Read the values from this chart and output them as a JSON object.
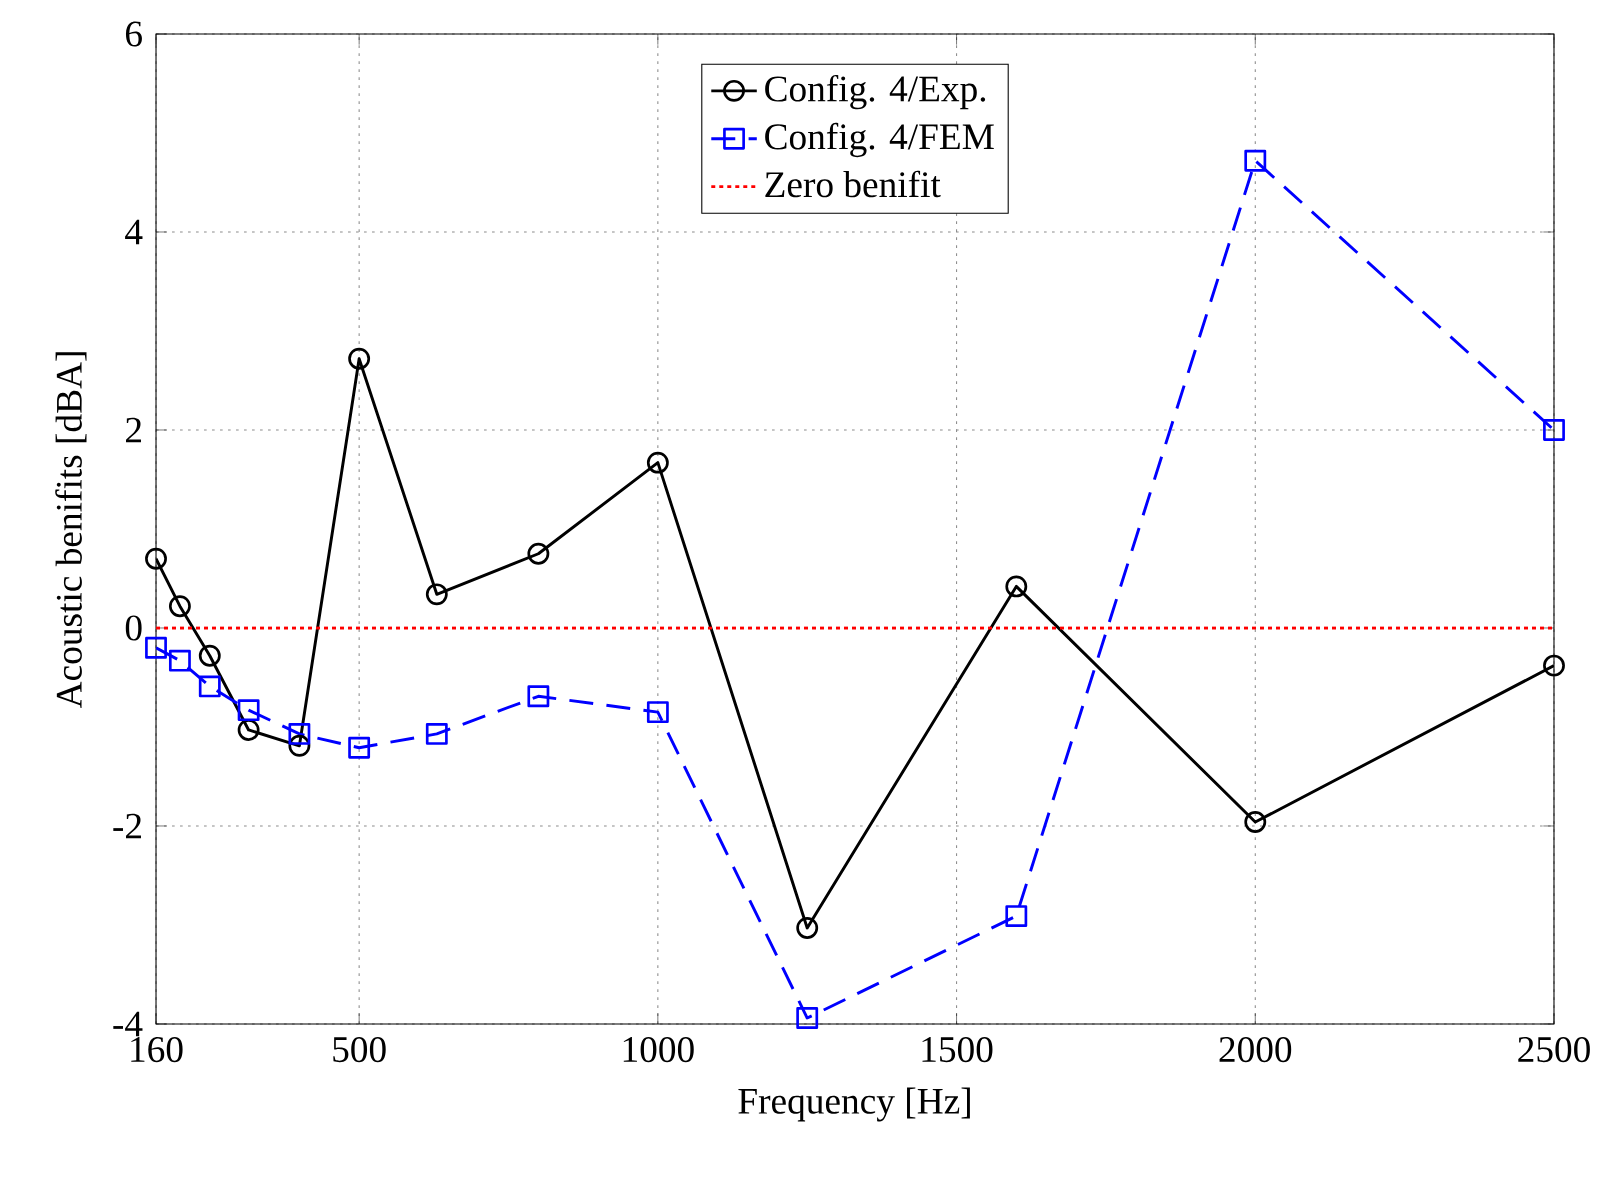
{
  "chart_data": {
    "type": "line",
    "xlabel": "Frequency [Hz]",
    "ylabel": "Acoustic benifits [dBA]",
    "xlim": [
      160,
      2500
    ],
    "ylim": [
      -4,
      6
    ],
    "xticks": [
      160,
      500,
      1000,
      1500,
      2000,
      2500
    ],
    "yticks": [
      -4,
      -2,
      0,
      2,
      4,
      6
    ],
    "grid": true,
    "legend": "top",
    "series": [
      {
        "name": "Config. 4/Exp.",
        "color": "#000000",
        "marker": "circle",
        "line_style": "solid",
        "x": [
          160,
          200,
          250,
          315,
          400,
          500,
          630,
          800,
          1000,
          1250,
          1600,
          2000,
          2500
        ],
        "values": [
          0.7,
          0.22,
          -0.28,
          -1.03,
          -1.19,
          2.72,
          0.34,
          0.75,
          1.67,
          -3.03,
          0.42,
          -1.96,
          -0.38
        ]
      },
      {
        "name": "Config. 4/FEM",
        "color": "#0000ff",
        "marker": "square",
        "line_style": "dashed",
        "x": [
          160,
          200,
          250,
          315,
          400,
          500,
          630,
          800,
          1000,
          1250,
          1600,
          2000,
          2500
        ],
        "values": [
          -0.2,
          -0.33,
          -0.59,
          -0.83,
          -1.07,
          -1.21,
          -1.07,
          -0.69,
          -0.85,
          -3.94,
          -2.91,
          4.72,
          2.0
        ]
      },
      {
        "name": "Zero benifit",
        "color": "#ff0000",
        "marker": "none",
        "line_style": "dotted",
        "x": [
          160,
          2500
        ],
        "values": [
          0,
          0
        ]
      }
    ]
  }
}
